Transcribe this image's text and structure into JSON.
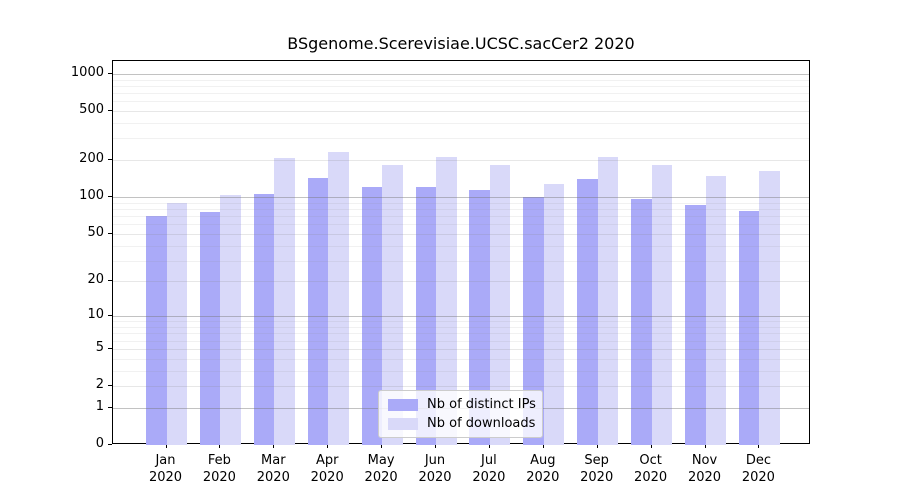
{
  "title": "BSgenome.Scerevisiae.UCSC.sacCer2 2020",
  "chart_data": {
    "type": "bar",
    "scale": "log10(1+x)",
    "categories": [
      "Jan",
      "Feb",
      "Mar",
      "Apr",
      "May",
      "Jun",
      "Jul",
      "Aug",
      "Sep",
      "Oct",
      "Nov",
      "Dec"
    ],
    "year": "2020",
    "series": [
      {
        "name": "Nb of distinct IPs",
        "key": "distinct-ips",
        "color": "#aaaaf8",
        "values": [
          70,
          76,
          107,
          144,
          120,
          120,
          115,
          100,
          141,
          97,
          87,
          77
        ]
      },
      {
        "name": "Nb of downloads",
        "key": "downloads",
        "color": "#d9d9f9",
        "values": [
          90,
          105,
          209,
          232,
          183,
          212,
          183,
          128,
          212,
          182,
          149,
          163
        ]
      }
    ],
    "yticks": [
      0,
      1,
      2,
      5,
      10,
      20,
      50,
      100,
      200,
      500,
      1000
    ],
    "ylim": [
      0,
      1000
    ],
    "xlabel": "",
    "ylabel": "",
    "grid": "horizontal",
    "legend_position": "lower-center"
  }
}
